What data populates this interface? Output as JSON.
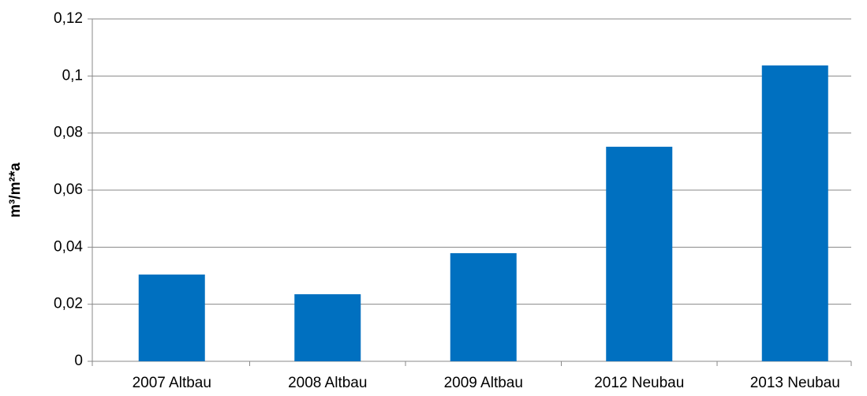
{
  "chart_data": {
    "type": "bar",
    "y_label": "m³/m²*a",
    "categories": [
      "2007 Altbau",
      "2008 Altbau",
      "2009 Altbau",
      "2012 Neubau",
      "2013 Neubau"
    ],
    "values": [
      0.0304,
      0.0235,
      0.0379,
      0.0752,
      0.1037
    ],
    "color": "#0070c0",
    "ylim": [
      0,
      0.12
    ],
    "yticks": [
      0,
      {
        "value": 0.02,
        "label": "0,02"
      },
      {
        "value": 0.04,
        "label": "0,04"
      },
      {
        "value": 0.06,
        "label": "0,06"
      },
      {
        "value": 0.08,
        "label": "0,08"
      },
      {
        "value": 0.1,
        "label": "0,1"
      },
      {
        "value": 0.12,
        "label": "0,12"
      }
    ],
    "grid": true
  }
}
